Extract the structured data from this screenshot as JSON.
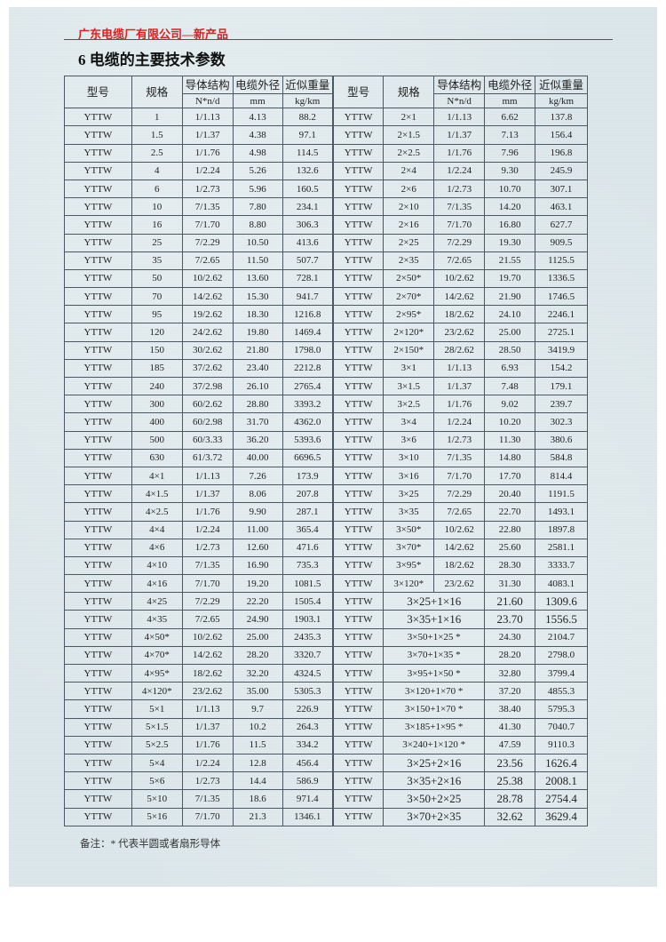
{
  "header": {
    "company": "广东电缆厂有限公司—新产品",
    "title": "6 电缆的主要技术参数"
  },
  "table": {
    "headers": {
      "model": "型号",
      "spec": "规格",
      "structure": "导体结构",
      "diameter": "电缆外径",
      "weight": "近似重量"
    },
    "units": {
      "structure": "N*n/d",
      "diameter": "mm",
      "weight": "kg/km"
    },
    "left_rows": [
      [
        "YTTW",
        "1",
        "1/1.13",
        "4.13",
        "88.2"
      ],
      [
        "YTTW",
        "1.5",
        "1/1.37",
        "4.38",
        "97.1"
      ],
      [
        "YTTW",
        "2.5",
        "1/1.76",
        "4.98",
        "114.5"
      ],
      [
        "YTTW",
        "4",
        "1/2.24",
        "5.26",
        "132.6"
      ],
      [
        "YTTW",
        "6",
        "1/2.73",
        "5.96",
        "160.5"
      ],
      [
        "YTTW",
        "10",
        "7/1.35",
        "7.80",
        "234.1"
      ],
      [
        "YTTW",
        "16",
        "7/1.70",
        "8.80",
        "306.3"
      ],
      [
        "YTTW",
        "25",
        "7/2.29",
        "10.50",
        "413.6"
      ],
      [
        "YTTW",
        "35",
        "7/2.65",
        "11.50",
        "507.7"
      ],
      [
        "YTTW",
        "50",
        "10/2.62",
        "13.60",
        "728.1"
      ],
      [
        "YTTW",
        "70",
        "14/2.62",
        "15.30",
        "941.7"
      ],
      [
        "YTTW",
        "95",
        "19/2.62",
        "18.30",
        "1216.8"
      ],
      [
        "YTTW",
        "120",
        "24/2.62",
        "19.80",
        "1469.4"
      ],
      [
        "YTTW",
        "150",
        "30/2.62",
        "21.80",
        "1798.0"
      ],
      [
        "YTTW",
        "185",
        "37/2.62",
        "23.40",
        "2212.8"
      ],
      [
        "YTTW",
        "240",
        "37/2.98",
        "26.10",
        "2765.4"
      ],
      [
        "YTTW",
        "300",
        "60/2.62",
        "28.80",
        "3393.2"
      ],
      [
        "YTTW",
        "400",
        "60/2.98",
        "31.70",
        "4362.0"
      ],
      [
        "YTTW",
        "500",
        "60/3.33",
        "36.20",
        "5393.6"
      ],
      [
        "YTTW",
        "630",
        "61/3.72",
        "40.00",
        "6696.5"
      ],
      [
        "YTTW",
        "4×1",
        "1/1.13",
        "7.26",
        "173.9"
      ],
      [
        "YTTW",
        "4×1.5",
        "1/1.37",
        "8.06",
        "207.8"
      ],
      [
        "YTTW",
        "4×2.5",
        "1/1.76",
        "9.90",
        "287.1"
      ],
      [
        "YTTW",
        "4×4",
        "1/2.24",
        "11.00",
        "365.4"
      ],
      [
        "YTTW",
        "4×6",
        "1/2.73",
        "12.60",
        "471.6"
      ],
      [
        "YTTW",
        "4×10",
        "7/1.35",
        "16.90",
        "735.3"
      ],
      [
        "YTTW",
        "4×16",
        "7/1.70",
        "19.20",
        "1081.5"
      ],
      [
        "YTTW",
        "4×25",
        "7/2.29",
        "22.20",
        "1505.4"
      ],
      [
        "YTTW",
        "4×35",
        "7/2.65",
        "24.90",
        "1903.1"
      ],
      [
        "YTTW",
        "4×50*",
        "10/2.62",
        "25.00",
        "2435.3"
      ],
      [
        "YTTW",
        "4×70*",
        "14/2.62",
        "28.20",
        "3320.7"
      ],
      [
        "YTTW",
        "4×95*",
        "18/2.62",
        "32.20",
        "4324.5"
      ],
      [
        "YTTW",
        "4×120*",
        "23/2.62",
        "35.00",
        "5305.3"
      ],
      [
        "YTTW",
        "5×1",
        "1/1.13",
        "9.7",
        "226.9"
      ],
      [
        "YTTW",
        "5×1.5",
        "1/1.37",
        "10.2",
        "264.3"
      ],
      [
        "YTTW",
        "5×2.5",
        "1/1.76",
        "11.5",
        "334.2"
      ],
      [
        "YTTW",
        "5×4",
        "1/2.24",
        "12.8",
        "456.4"
      ],
      [
        "YTTW",
        "5×6",
        "1/2.73",
        "14.4",
        "586.9"
      ],
      [
        "YTTW",
        "5×10",
        "7/1.35",
        "18.6",
        "971.4"
      ],
      [
        "YTTW",
        "5×16",
        "7/1.70",
        "21.3",
        "1346.1"
      ]
    ],
    "right_rows": [
      [
        "YTTW",
        "2×1",
        "1/1.13",
        "6.62",
        "137.8"
      ],
      [
        "YTTW",
        "2×1.5",
        "1/1.37",
        "7.13",
        "156.4"
      ],
      [
        "YTTW",
        "2×2.5",
        "1/1.76",
        "7.96",
        "196.8"
      ],
      [
        "YTTW",
        "2×4",
        "1/2.24",
        "9.30",
        "245.9"
      ],
      [
        "YTTW",
        "2×6",
        "1/2.73",
        "10.70",
        "307.1"
      ],
      [
        "YTTW",
        "2×10",
        "7/1.35",
        "14.20",
        "463.1"
      ],
      [
        "YTTW",
        "2×16",
        "7/1.70",
        "16.80",
        "627.7"
      ],
      [
        "YTTW",
        "2×25",
        "7/2.29",
        "19.30",
        "909.5"
      ],
      [
        "YTTW",
        "2×35",
        "7/2.65",
        "21.55",
        "1125.5"
      ],
      [
        "YTTW",
        "2×50*",
        "10/2.62",
        "19.70",
        "1336.5"
      ],
      [
        "YTTW",
        "2×70*",
        "14/2.62",
        "21.90",
        "1746.5"
      ],
      [
        "YTTW",
        "2×95*",
        "18/2.62",
        "24.10",
        "2246.1"
      ],
      [
        "YTTW",
        "2×120*",
        "23/2.62",
        "25.00",
        "2725.1"
      ],
      [
        "YTTW",
        "2×150*",
        "28/2.62",
        "28.50",
        "3419.9"
      ],
      [
        "YTTW",
        "3×1",
        "1/1.13",
        "6.93",
        "154.2"
      ],
      [
        "YTTW",
        "3×1.5",
        "1/1.37",
        "7.48",
        "179.1"
      ],
      [
        "YTTW",
        "3×2.5",
        "1/1.76",
        "9.02",
        "239.7"
      ],
      [
        "YTTW",
        "3×4",
        "1/2.24",
        "10.20",
        "302.3"
      ],
      [
        "YTTW",
        "3×6",
        "1/2.73",
        "11.30",
        "380.6"
      ],
      [
        "YTTW",
        "3×10",
        "7/1.35",
        "14.80",
        "584.8"
      ],
      [
        "YTTW",
        "3×16",
        "7/1.70",
        "17.70",
        "814.4"
      ],
      [
        "YTTW",
        "3×25",
        "7/2.29",
        "20.40",
        "1191.5"
      ],
      [
        "YTTW",
        "3×35",
        "7/2.65",
        "22.70",
        "1493.1"
      ],
      [
        "YTTW",
        "3×50*",
        "10/2.62",
        "22.80",
        "1897.8"
      ],
      [
        "YTTW",
        "3×70*",
        "14/2.62",
        "25.60",
        "2581.1"
      ],
      [
        "YTTW",
        "3×95*",
        "18/2.62",
        "28.30",
        "3333.7"
      ],
      [
        "YTTW",
        "3×120*",
        "23/2.62",
        "31.30",
        "4083.1"
      ],
      [
        "YTTW",
        "3×25+1×16",
        "21.60",
        "1309.6"
      ],
      [
        "YTTW",
        "3×35+1×16",
        "23.70",
        "1556.5"
      ],
      [
        "YTTW",
        "3×50+1×25 *",
        "24.30",
        "2104.7"
      ],
      [
        "YTTW",
        "3×70+1×35 *",
        "28.20",
        "2798.0"
      ],
      [
        "YTTW",
        "3×95+1×50 *",
        "32.80",
        "3799.4"
      ],
      [
        "YTTW",
        "3×120+1×70 *",
        "37.20",
        "4855.3"
      ],
      [
        "YTTW",
        "3×150+1×70 *",
        "38.40",
        "5795.3"
      ],
      [
        "YTTW",
        "3×185+1×95 *",
        "41.30",
        "7040.7"
      ],
      [
        "YTTW",
        "3×240+1×120 *",
        "47.59",
        "9110.3"
      ],
      [
        "YTTW",
        "3×25+2×16",
        "23.56",
        "1626.4"
      ],
      [
        "YTTW",
        "3×35+2×16",
        "25.38",
        "2008.1"
      ],
      [
        "YTTW",
        "3×50+2×25",
        "28.78",
        "2754.4"
      ],
      [
        "YTTW",
        "3×70+2×35",
        "32.62",
        "3629.4"
      ]
    ]
  },
  "note": "备注：*   代表半圆或者扇形导体",
  "colors": {
    "company": "#d8231f",
    "background": "#dae5e9"
  }
}
